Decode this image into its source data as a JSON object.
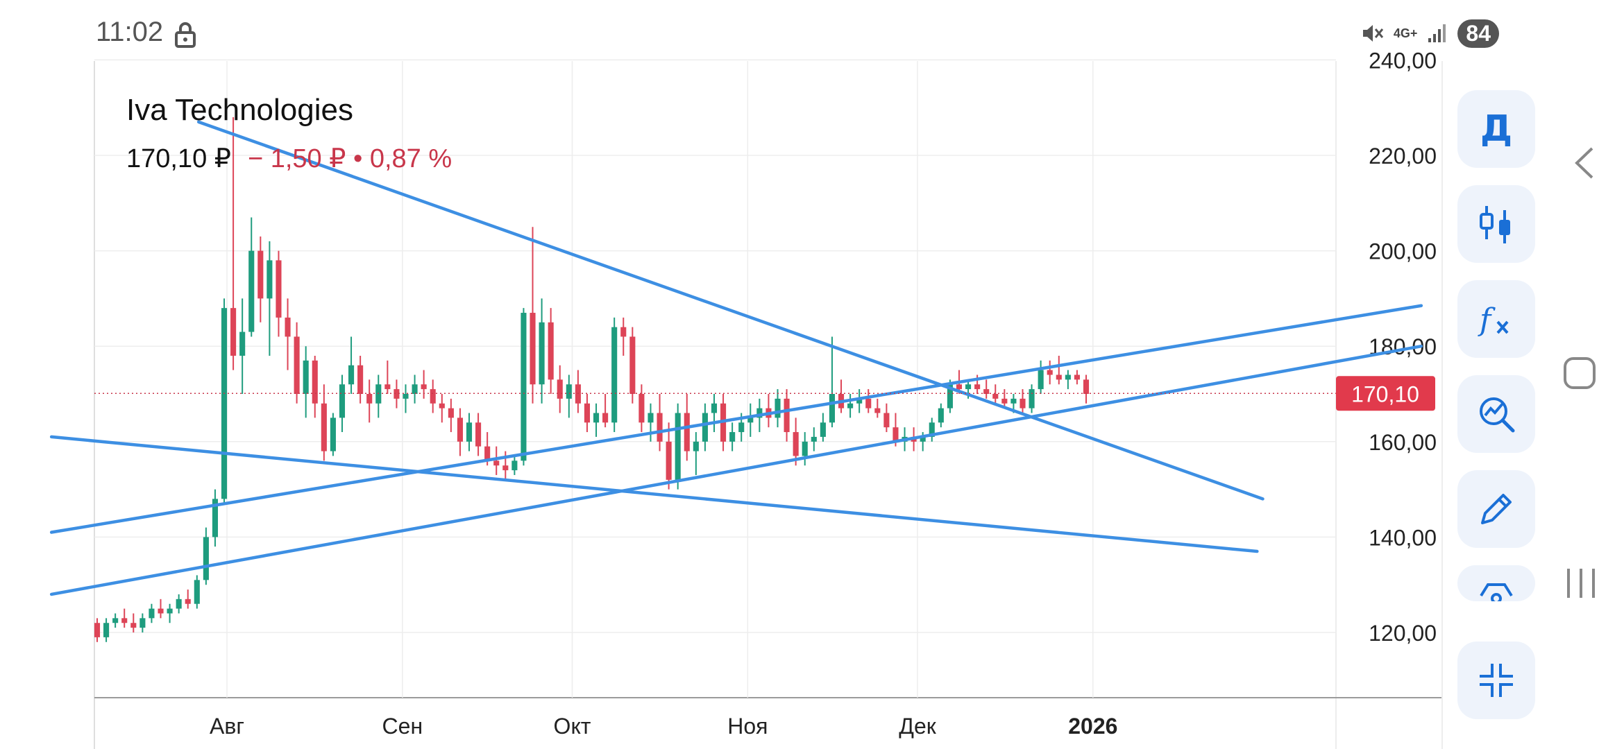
{
  "status": {
    "time": "11:02",
    "network": "4G+",
    "battery": "84"
  },
  "header": {
    "title": "Iva Technologies",
    "price": "170,10 ₽",
    "change": "− 1,50 ₽ • 0,87 %"
  },
  "toolbar": {
    "buttons": [
      {
        "name": "period-button",
        "label": "Д",
        "icon": "text"
      },
      {
        "name": "chart-type-button",
        "icon": "candles-icon"
      },
      {
        "name": "indicators-button",
        "icon": "fx-icon"
      },
      {
        "name": "analysis-button",
        "icon": "chart-search-icon"
      },
      {
        "name": "draw-button",
        "icon": "pencil-icon"
      },
      {
        "name": "extra-button",
        "icon": "shape-icon"
      },
      {
        "name": "collapse-button",
        "icon": "collapse-icon"
      }
    ]
  },
  "chart_data": {
    "type": "candlestick",
    "title": "Iva Technologies",
    "ylim": [
      110,
      240
    ],
    "y_ticks": [
      "120,00",
      "140,00",
      "160,00",
      "180,00",
      "200,00",
      "220,00",
      "240,00"
    ],
    "y_tick_values": [
      120,
      140,
      160,
      180,
      200,
      220,
      240
    ],
    "x_ticks": [
      {
        "label": "Авг",
        "date": "2025-08-01"
      },
      {
        "label": "Сен",
        "date": "2025-09-01"
      },
      {
        "label": "Окт",
        "date": "2025-10-01"
      },
      {
        "label": "Ноя",
        "date": "2025-11-01"
      },
      {
        "label": "Дек",
        "date": "2025-12-01"
      },
      {
        "label": "2026",
        "date": "2026-01-01",
        "bold": true
      }
    ],
    "last_price": {
      "value": 170.1,
      "label": "170,10"
    },
    "colors": {
      "up": "#1e9c7e",
      "down": "#dd4457",
      "trendline": "#3d8fe3",
      "badge": "#e13a4c",
      "grid": "#ededed"
    },
    "candles_start_date": "2025-07-10",
    "candles": [
      [
        122,
        123,
        118,
        119
      ],
      [
        119,
        123,
        118,
        122
      ],
      [
        122,
        124,
        121,
        123
      ],
      [
        123,
        125,
        121,
        122
      ],
      [
        122,
        124,
        120,
        121
      ],
      [
        121,
        124,
        120,
        123
      ],
      [
        123,
        126,
        122,
        125
      ],
      [
        125,
        127,
        123,
        124
      ],
      [
        124,
        126,
        122,
        125
      ],
      [
        125,
        128,
        124,
        127
      ],
      [
        127,
        129,
        125,
        126
      ],
      [
        126,
        132,
        125,
        131
      ],
      [
        131,
        142,
        130,
        140
      ],
      [
        140,
        150,
        138,
        148
      ],
      [
        148,
        190,
        147,
        188
      ],
      [
        188,
        228,
        175,
        178
      ],
      [
        178,
        190,
        170,
        183
      ],
      [
        183,
        207,
        182,
        200
      ],
      [
        200,
        203,
        185,
        190
      ],
      [
        190,
        202,
        178,
        198
      ],
      [
        198,
        200,
        182,
        186
      ],
      [
        186,
        190,
        175,
        182
      ],
      [
        182,
        185,
        168,
        170
      ],
      [
        170,
        180,
        165,
        177
      ],
      [
        177,
        178,
        165,
        168
      ],
      [
        168,
        172,
        156,
        158
      ],
      [
        158,
        166,
        157,
        165
      ],
      [
        165,
        174,
        162,
        172
      ],
      [
        172,
        182,
        170,
        176
      ],
      [
        176,
        178,
        168,
        170
      ],
      [
        170,
        173,
        164,
        168
      ],
      [
        168,
        174,
        165,
        172
      ],
      [
        172,
        177,
        170,
        171
      ],
      [
        171,
        173,
        167,
        169
      ],
      [
        169,
        172,
        166,
        170
      ],
      [
        170,
        174,
        168,
        172
      ],
      [
        172,
        175,
        169,
        171
      ],
      [
        171,
        173,
        166,
        168
      ],
      [
        168,
        170,
        164,
        167
      ],
      [
        167,
        169,
        162,
        165
      ],
      [
        165,
        167,
        157,
        160
      ],
      [
        160,
        166,
        158,
        164
      ],
      [
        164,
        166,
        157,
        159
      ],
      [
        159,
        162,
        155,
        156
      ],
      [
        156,
        159,
        153,
        155
      ],
      [
        155,
        158,
        152,
        154
      ],
      [
        154,
        157,
        153,
        156
      ],
      [
        156,
        188,
        155,
        187
      ],
      [
        187,
        205,
        168,
        172
      ],
      [
        172,
        190,
        168,
        185
      ],
      [
        185,
        188,
        170,
        173
      ],
      [
        173,
        176,
        166,
        169
      ],
      [
        169,
        174,
        165,
        172
      ],
      [
        172,
        175,
        166,
        168
      ],
      [
        168,
        170,
        162,
        164
      ],
      [
        164,
        168,
        161,
        166
      ],
      [
        166,
        170,
        163,
        164
      ],
      [
        164,
        186,
        162,
        184
      ],
      [
        184,
        186,
        178,
        182
      ],
      [
        182,
        184,
        168,
        170
      ],
      [
        170,
        172,
        162,
        164
      ],
      [
        164,
        168,
        160,
        166
      ],
      [
        166,
        170,
        158,
        160
      ],
      [
        160,
        164,
        150,
        152
      ],
      [
        152,
        168,
        150,
        166
      ],
      [
        166,
        170,
        156,
        158
      ],
      [
        158,
        162,
        153,
        160
      ],
      [
        160,
        168,
        158,
        166
      ],
      [
        166,
        170,
        162,
        168
      ],
      [
        168,
        170,
        158,
        160
      ],
      [
        160,
        164,
        158,
        162
      ],
      [
        162,
        166,
        160,
        164
      ],
      [
        164,
        168,
        161,
        165
      ],
      [
        165,
        169,
        162,
        167
      ],
      [
        167,
        170,
        163,
        165
      ],
      [
        165,
        171,
        163,
        169
      ],
      [
        169,
        171,
        160,
        162
      ],
      [
        162,
        165,
        155,
        157
      ],
      [
        157,
        162,
        155,
        160
      ],
      [
        160,
        163,
        158,
        161
      ],
      [
        161,
        166,
        160,
        164
      ],
      [
        164,
        182,
        163,
        170
      ],
      [
        170,
        173,
        166,
        167
      ],
      [
        167,
        170,
        165,
        168
      ],
      [
        168,
        171,
        166,
        169
      ],
      [
        169,
        171,
        166,
        167
      ],
      [
        167,
        169,
        165,
        166
      ],
      [
        166,
        168,
        162,
        163
      ],
      [
        163,
        166,
        159,
        160
      ],
      [
        160,
        163,
        158,
        161
      ],
      [
        161,
        163,
        158,
        160
      ],
      [
        160,
        162,
        158,
        161
      ],
      [
        161,
        165,
        160,
        164
      ],
      [
        164,
        168,
        163,
        167
      ],
      [
        167,
        173,
        166,
        172
      ],
      [
        172,
        175,
        170,
        171
      ],
      [
        171,
        173,
        169,
        172
      ],
      [
        172,
        174,
        170,
        171
      ],
      [
        171,
        173,
        169,
        170
      ],
      [
        170,
        172,
        168,
        169
      ],
      [
        169,
        171,
        167,
        168
      ],
      [
        168,
        170,
        166,
        169
      ],
      [
        169,
        171,
        166,
        167
      ],
      [
        167,
        172,
        166,
        171
      ],
      [
        171,
        177,
        170,
        175
      ],
      [
        175,
        177,
        172,
        174
      ],
      [
        174,
        178,
        172,
        173
      ],
      [
        173,
        175,
        171,
        174
      ],
      [
        174,
        175,
        172,
        173
      ],
      [
        173,
        174,
        168,
        170
      ]
    ],
    "trendlines": [
      {
        "name": "descending-resistance",
        "from": [
          "2025-07-27",
          227
        ],
        "to": [
          "2026-01-31",
          148
        ]
      },
      {
        "name": "lower-support",
        "from": [
          "2025-07-01",
          161
        ],
        "to": [
          "2026-01-30",
          137
        ]
      },
      {
        "name": "rising-channel-top",
        "from": [
          "2025-07-01",
          141
        ],
        "to": [
          "2026-02-28",
          188.5
        ]
      },
      {
        "name": "rising-channel-bottom",
        "from": [
          "2025-07-01",
          128
        ],
        "to": [
          "2026-02-28",
          180
        ]
      }
    ]
  }
}
